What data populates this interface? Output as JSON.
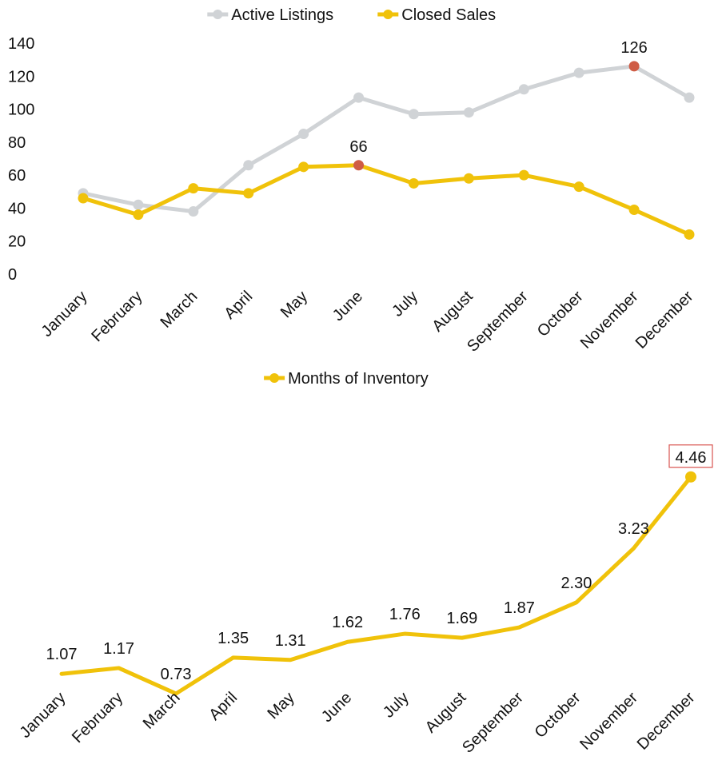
{
  "chart_data": [
    {
      "type": "line",
      "categories": [
        "January",
        "February",
        "March",
        "April",
        "May",
        "June",
        "July",
        "August",
        "September",
        "October",
        "November",
        "December"
      ],
      "series": [
        {
          "name": "Active Listings",
          "values": [
            49,
            42,
            38,
            66,
            85,
            107,
            97,
            98,
            112,
            122,
            126,
            107
          ],
          "color": "#d0d3d6"
        },
        {
          "name": "Closed Sales",
          "values": [
            46,
            36,
            52,
            49,
            65,
            66,
            55,
            58,
            60,
            53,
            39,
            24
          ],
          "color": "#f0c20a"
        }
      ],
      "ylim": [
        0,
        140
      ],
      "yticks": [
        "0",
        "20",
        "40",
        "60",
        "80",
        "100",
        "120",
        "140"
      ],
      "highlights": [
        {
          "series": "Active Listings",
          "category": "November",
          "label": "126",
          "color": "#cf5c45"
        },
        {
          "series": "Closed Sales",
          "category": "June",
          "label": "66",
          "color": "#cf5c45"
        }
      ],
      "legend": "top-center",
      "grid": false,
      "drop_lines": true,
      "drop_line_color": "#1a80b0"
    },
    {
      "type": "line",
      "categories": [
        "January",
        "February",
        "March",
        "April",
        "May",
        "June",
        "July",
        "August",
        "September",
        "October",
        "November",
        "December"
      ],
      "series": [
        {
          "name": "Months of Inventory",
          "values": [
            1.07,
            1.17,
            0.73,
            1.35,
            1.31,
            1.62,
            1.76,
            1.69,
            1.87,
            2.3,
            3.23,
            4.46
          ],
          "labels": [
            "1.07",
            "1.17",
            "0.73",
            "1.35",
            "1.31",
            "1.62",
            "1.76",
            "1.69",
            "1.87",
            "2.30",
            "3.23",
            "4.46"
          ],
          "color": "#f0c20a"
        }
      ],
      "highlights": [
        {
          "series": "Months of Inventory",
          "category": "December",
          "label": "4.46",
          "boxed": true,
          "box_color": "#d9534f"
        }
      ],
      "legend": "top-center",
      "grid": false,
      "y_axis_visible": false,
      "drop_lines": true,
      "drop_line_color": "#1a80b0"
    }
  ]
}
